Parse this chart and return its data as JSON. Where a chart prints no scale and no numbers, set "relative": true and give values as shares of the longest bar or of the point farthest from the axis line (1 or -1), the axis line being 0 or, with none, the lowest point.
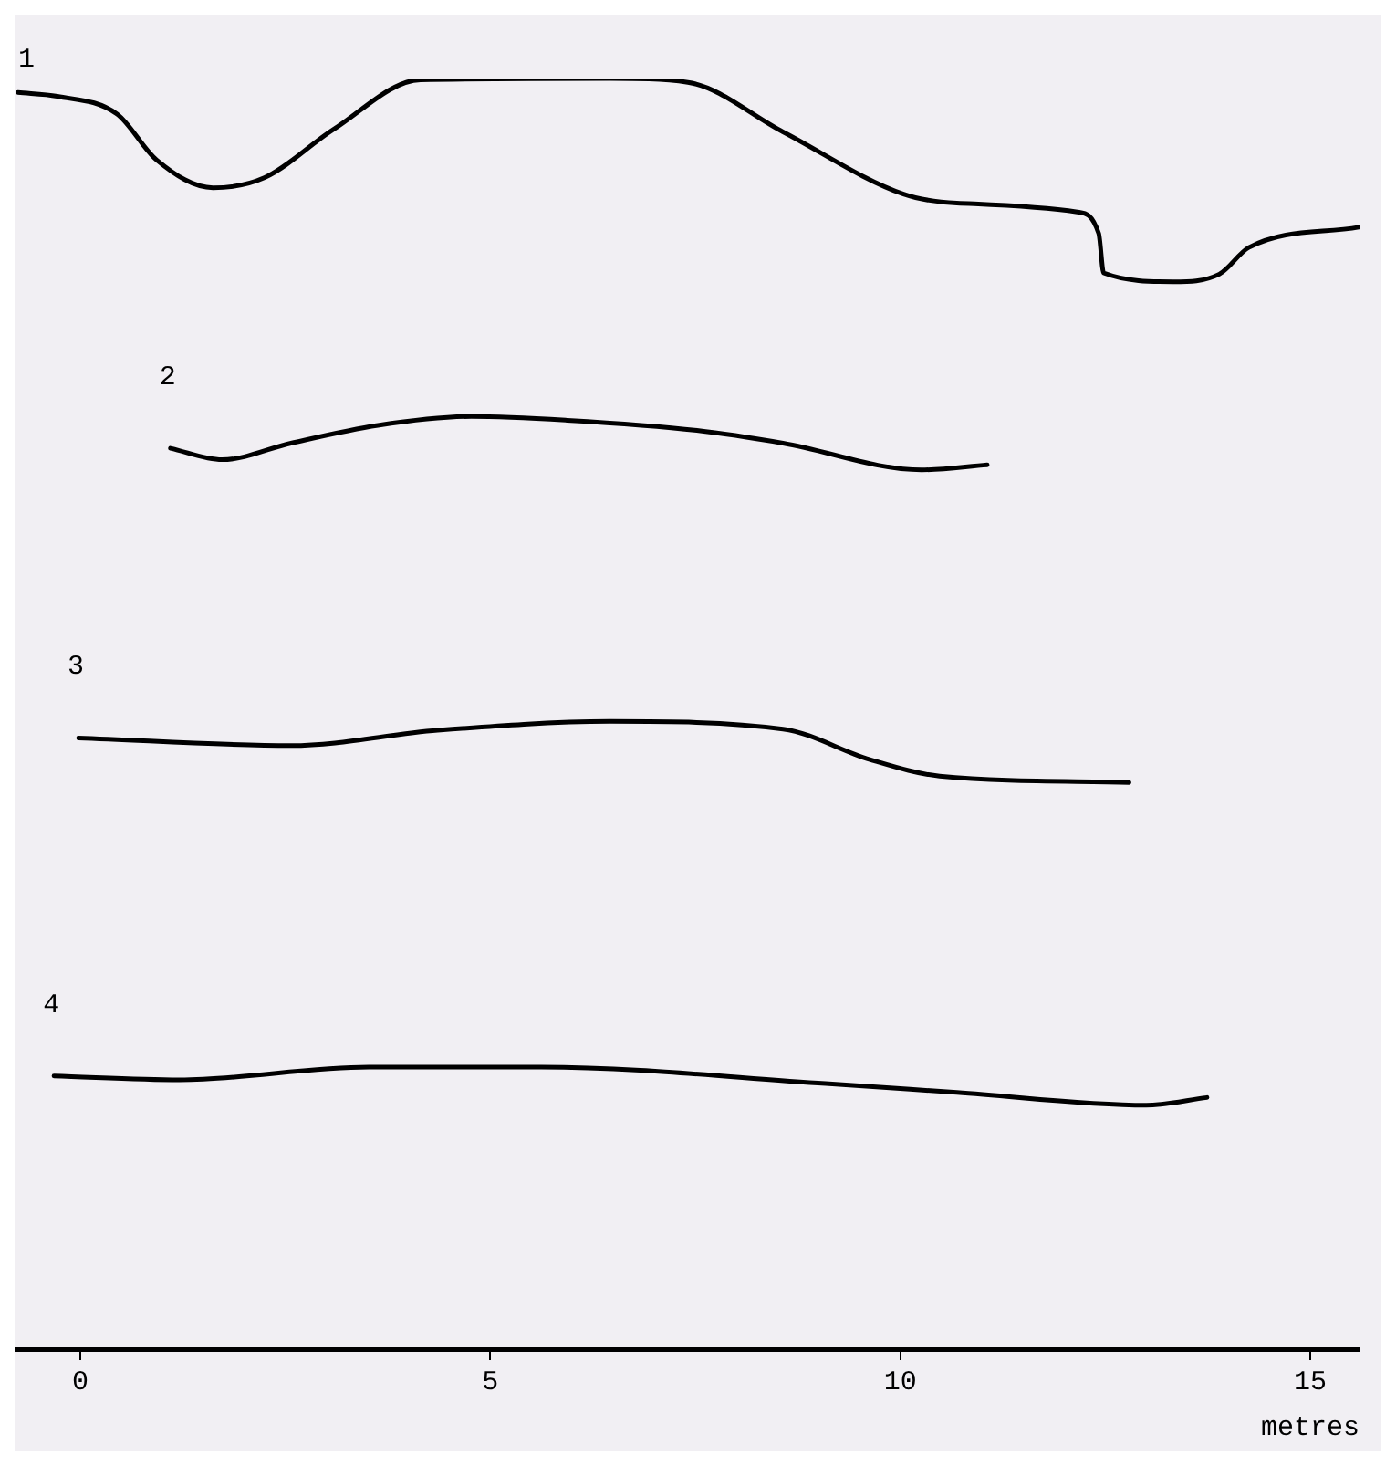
{
  "chart_data": {
    "type": "line",
    "relative": true,
    "xlabel": "metres",
    "xlim": [
      -0.8,
      15.6
    ],
    "xticks": [
      0,
      5,
      10,
      15
    ],
    "legend": false,
    "marker": "none",
    "line_style": "solid",
    "series": [
      {
        "name": "1",
        "color": "#000000",
        "x": [
          -0.76,
          -0.28,
          0.45,
          0.93,
          1.62,
          2.25,
          3.09,
          4.15,
          6.46,
          7.41,
          8.57,
          10.04,
          10.69,
          12.16,
          12.42,
          12.48,
          13.33,
          13.89,
          14.25,
          15.59
        ],
        "values": [
          0.989,
          0.986,
          0.972,
          0.936,
          0.914,
          0.922,
          0.96,
          0.999,
          1.0,
          0.997,
          0.958,
          0.909,
          0.902,
          0.895,
          0.878,
          0.847,
          0.84,
          0.846,
          0.867,
          0.883
        ]
      },
      {
        "name": "2",
        "color": "#000000",
        "x": [
          1.1,
          1.73,
          2.57,
          3.63,
          4.77,
          5.94,
          7.52,
          8.57,
          10.26,
          11.06
        ],
        "values": [
          0.709,
          0.7,
          0.713,
          0.727,
          0.734,
          0.731,
          0.723,
          0.713,
          0.692,
          0.696
        ]
      },
      {
        "name": "3",
        "color": "#000000",
        "x": [
          -0.02,
          2.57,
          4.36,
          6.46,
          8.57,
          9.63,
          10.48,
          12.79
        ],
        "values": [
          0.481,
          0.475,
          0.487,
          0.494,
          0.488,
          0.464,
          0.451,
          0.446
        ]
      },
      {
        "name": "4",
        "color": "#000000",
        "x": [
          -0.32,
          1.21,
          3.52,
          5.62,
          9.09,
          10.69,
          13.0,
          13.74
        ],
        "values": [
          0.215,
          0.212,
          0.222,
          0.222,
          0.209,
          0.202,
          0.192,
          0.198
        ]
      }
    ]
  }
}
